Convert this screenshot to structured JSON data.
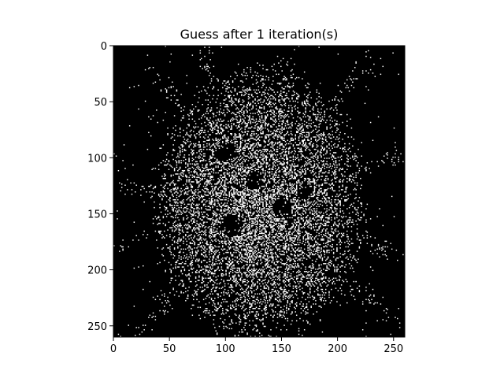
{
  "chart_data": {
    "type": "heatmap",
    "title": "Guess after 1 iteration(s)",
    "xlabel": "",
    "ylabel": "",
    "x_ticks": [
      "0",
      "50",
      "100",
      "150",
      "200",
      "250"
    ],
    "y_ticks": [
      "0",
      "50",
      "100",
      "150",
      "200",
      "250"
    ],
    "xlim": [
      0,
      260
    ],
    "ylim": [
      260,
      0
    ],
    "grid": false,
    "colormap": "binary (black background, white pixels)",
    "colors": {
      "background": "#000000",
      "pixel_on": "#ffffff",
      "axis": "#000000"
    },
    "image_size": [
      260,
      260
    ],
    "description_values": {
      "center_x": 130,
      "center_y": 140,
      "dense_core_extent_x": [
        60,
        200
      ],
      "dense_core_extent_y": [
        40,
        235
      ],
      "radial_streaks": 12
    }
  }
}
